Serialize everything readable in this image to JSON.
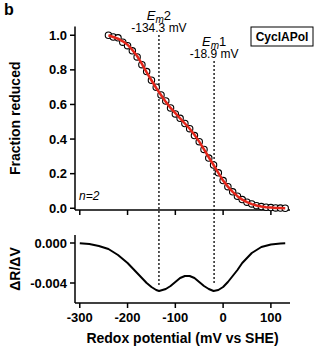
{
  "chart_data": [
    {
      "type": "scatter",
      "panel_label": "b",
      "box_label": "CyclAPol",
      "note": "n=2",
      "ylabel": "Fraction reduced",
      "xlim": [
        -310,
        140
      ],
      "ylim": [
        -0.01,
        1.05
      ],
      "xticks": [
        -300,
        -200,
        -100,
        0,
        100
      ],
      "yticks": [
        {
          "value": 0,
          "label": "0.0"
        },
        {
          "value": 0.2,
          "label": "0.2"
        },
        {
          "value": 0.4,
          "label": "0.4"
        },
        {
          "value": 0.6,
          "label": "0.6"
        },
        {
          "value": 0.8,
          "label": "0.8"
        },
        {
          "value": 1,
          "label": "1.0"
        }
      ],
      "tick_labels": "y",
      "x": [
        -240,
        -230,
        -220,
        -210,
        -200,
        -190,
        -180,
        -170,
        -160,
        -150,
        -140,
        -130,
        -120,
        -110,
        -100,
        -90,
        -80,
        -70,
        -60,
        -50,
        -40,
        -30,
        -20,
        -10,
        0,
        10,
        20,
        30,
        40,
        50,
        60,
        70,
        80,
        90,
        100,
        110,
        120,
        130
      ],
      "series": [
        {
          "type": "scatter",
          "marker": "circle",
          "color": "#000000",
          "values": [
            1.0,
            0.99,
            0.985,
            0.96,
            0.94,
            0.91,
            0.875,
            0.83,
            0.79,
            0.74,
            0.7,
            0.655,
            0.62,
            0.58,
            0.545,
            0.52,
            0.49,
            0.46,
            0.42,
            0.385,
            0.34,
            0.29,
            0.25,
            0.205,
            0.16,
            0.125,
            0.095,
            0.07,
            0.05,
            0.035,
            0.025,
            0.015,
            0.01,
            0.006,
            0.004,
            0.002,
            0.001,
            0.0
          ],
          "errors": [
            0.015,
            0.015,
            0.015,
            0.015,
            0.015,
            0.015,
            0.015,
            0.015,
            0.015,
            0.015,
            0.015,
            0.015,
            0.015,
            0.015,
            0.015,
            0.015,
            0.015,
            0.015,
            0.015,
            0.015,
            0.015,
            0.015,
            0.015,
            0.015,
            0.015,
            0.015,
            0.015,
            0.015,
            0.015,
            0.015,
            0.015,
            0.015,
            0.015,
            0.015,
            0.015,
            0.015,
            0.015,
            0.015
          ]
        },
        {
          "type": "line",
          "color": "#e3261b",
          "values": [
            1.0,
            0.99,
            0.98,
            0.965,
            0.945,
            0.915,
            0.88,
            0.835,
            0.785,
            0.74,
            0.695,
            0.655,
            0.615,
            0.58,
            0.55,
            0.52,
            0.49,
            0.46,
            0.425,
            0.385,
            0.34,
            0.295,
            0.25,
            0.205,
            0.16,
            0.125,
            0.095,
            0.07,
            0.05,
            0.035,
            0.024,
            0.016,
            0.01,
            0.006,
            0.004,
            0.002,
            0.001,
            0.0005
          ]
        }
      ],
      "vlines": [
        {
          "value": -134.3,
          "name": "Em2",
          "label": "-134.3 mV"
        },
        {
          "value": -18.9,
          "name": "Em1",
          "label": "-18.9 mV"
        }
      ]
    },
    {
      "type": "line",
      "ylabel": "ΔR/ΔV",
      "xlabel": "Redox potential (mV vs SHE)",
      "xlim": [
        -310,
        140
      ],
      "ylim": [
        -0.006,
        0.0008
      ],
      "xticks": [
        -300,
        -200,
        -100,
        0,
        100
      ],
      "yticks": [
        {
          "value": 0,
          "label": "0.000"
        },
        {
          "value": -0.004,
          "label": "-0.004"
        }
      ],
      "x": [
        -300,
        -280,
        -260,
        -240,
        -220,
        -200,
        -180,
        -160,
        -150,
        -140,
        -134,
        -120,
        -110,
        -100,
        -90,
        -80,
        -70,
        -60,
        -50,
        -40,
        -30,
        -20,
        -10,
        0,
        10,
        20,
        30,
        40,
        60,
        80,
        100,
        120,
        130
      ],
      "series": [
        {
          "color": "#000000",
          "values": [
            -2e-05,
            -0.0001,
            -0.0003,
            -0.0006,
            -0.0012,
            -0.002,
            -0.003,
            -0.004,
            -0.0044,
            -0.0047,
            -0.0048,
            -0.0046,
            -0.0043,
            -0.0039,
            -0.0035,
            -0.0033,
            -0.0033,
            -0.0035,
            -0.0039,
            -0.0043,
            -0.0046,
            -0.0048,
            -0.0047,
            -0.0044,
            -0.0039,
            -0.0033,
            -0.0027,
            -0.002,
            -0.001,
            -0.0004,
            -0.00015,
            -5e-05,
            -3e-05
          ]
        }
      ]
    }
  ]
}
